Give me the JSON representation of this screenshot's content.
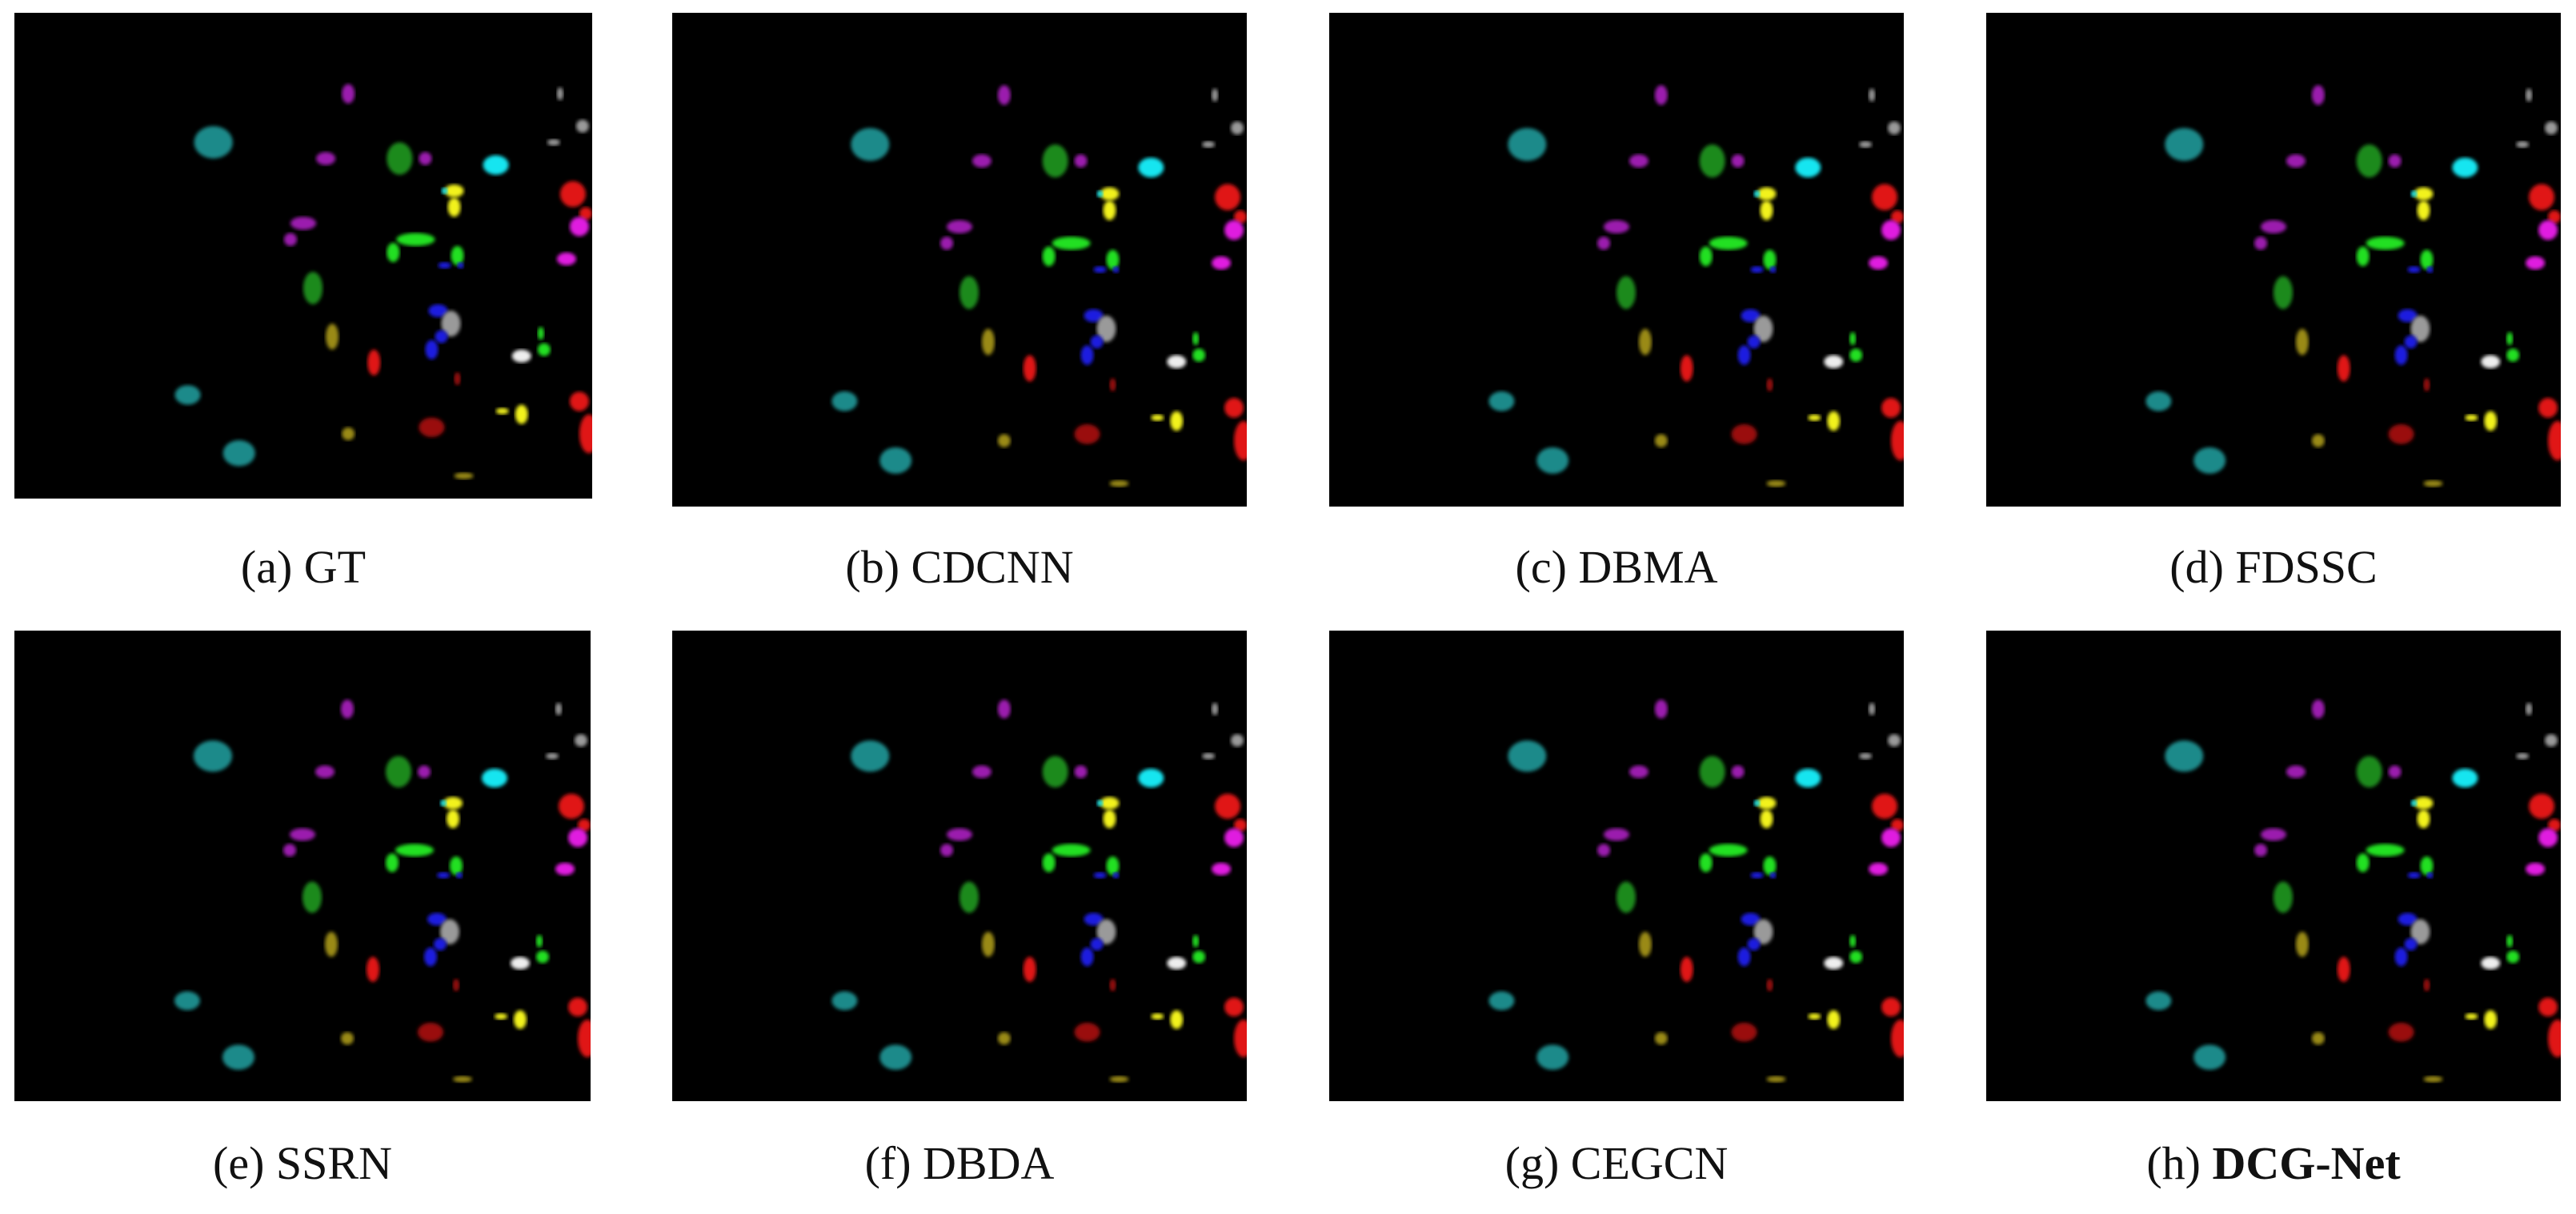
{
  "figure": {
    "panels": [
      {
        "label": "(a)",
        "name": "GT",
        "bold_name": false
      },
      {
        "label": "(b)",
        "name": "CDCNN",
        "bold_name": false
      },
      {
        "label": "(c)",
        "name": "DBMA",
        "bold_name": false
      },
      {
        "label": "(d)",
        "name": "FDSSC",
        "bold_name": false
      },
      {
        "label": "(e)",
        "name": "SSRN",
        "bold_name": false
      },
      {
        "label": "(f)",
        "name": "DBDA",
        "bold_name": false
      },
      {
        "label": "(g)",
        "name": "CEGCN",
        "bold_name": false
      },
      {
        "label": "(h)",
        "name": "DCG-Net",
        "bold_name": true
      }
    ],
    "colors": {
      "background": "#000000",
      "cyan_dark": "#1a8a8a",
      "cyan_bright": "#19e5f0",
      "purple": "#9b1fae",
      "green_dark": "#1f8a1f",
      "green_bright": "#22e022",
      "yellow": "#f2f21a",
      "olive": "#9a8a15",
      "blue": "#1a1ae0",
      "red": "#e01515",
      "dark_red": "#9a1010",
      "magenta": "#e01ae0",
      "white": "#eeeeee",
      "grey": "#9a9a9a"
    }
  }
}
